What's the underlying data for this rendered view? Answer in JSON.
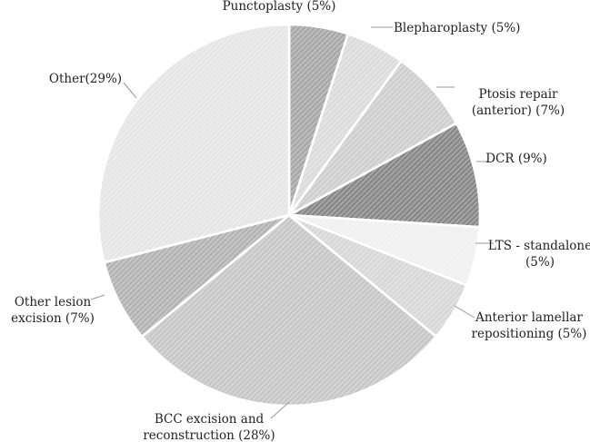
{
  "chart_data": {
    "type": "pie",
    "title": "",
    "slices": [
      {
        "label": "Punctoplasty (5%)",
        "value": 5,
        "fill": "#a9a9a9",
        "lines": [
          "Punctoplasty (5%)"
        ]
      },
      {
        "label": "Blepharoplasty (5%)",
        "value": 5,
        "fill": "#dcdcdc",
        "lines": [
          "Blepharoplasty (5%)"
        ]
      },
      {
        "label": "Ptosis repair (anterior) (7%)",
        "value": 7,
        "fill": "#cfcfcf",
        "lines": [
          "Ptosis repair",
          "(anterior) (7%)"
        ]
      },
      {
        "label": "DCR (9%)",
        "value": 9,
        "fill": "#8a8a8a",
        "lines": [
          "DCR (9%)"
        ]
      },
      {
        "label": "LTS - standalone (5%)",
        "value": 5,
        "fill": "#f0f0f0",
        "lines": [
          "LTS - standalone",
          "(5%)"
        ]
      },
      {
        "label": "Anterior lamellar repositioning (5%)",
        "value": 5,
        "fill": "#d8d8d8",
        "lines": [
          "Anterior lamellar",
          "repositioning (5%)"
        ]
      },
      {
        "label": "BCC excision and reconstruction (28%)",
        "value": 28,
        "fill": "#c8c8c8",
        "lines": [
          "BCC excision and",
          "reconstruction (28%)"
        ]
      },
      {
        "label": "Other lesion excision (7%)",
        "value": 7,
        "fill": "#b4b4b4",
        "lines": [
          "Other lesion",
          "excision (7%)"
        ]
      },
      {
        "label": "Other(29%)",
        "value": 29,
        "fill": "#e6e6e6",
        "lines": [
          "Other(29%)"
        ]
      }
    ]
  }
}
